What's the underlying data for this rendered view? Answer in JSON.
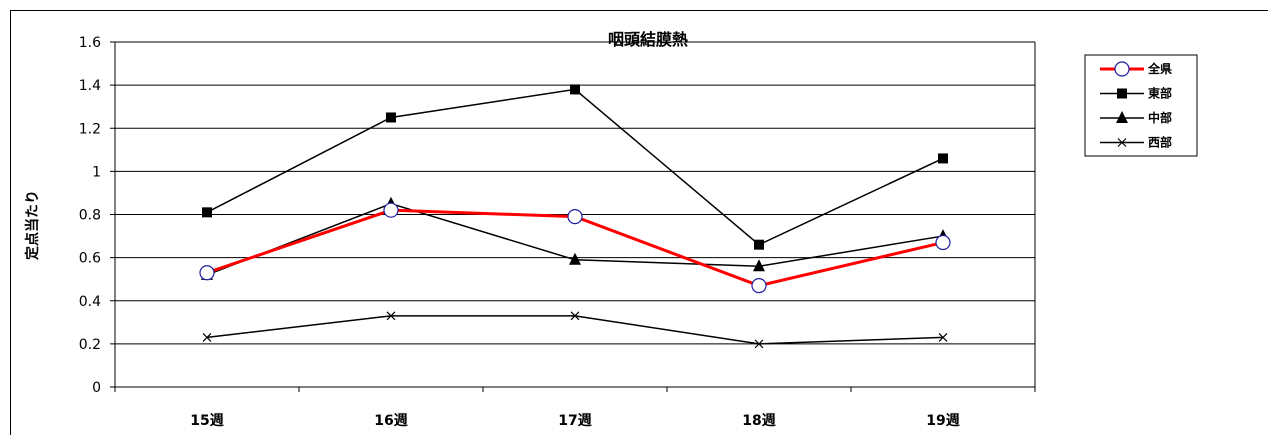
{
  "chart_data": {
    "type": "line",
    "title": "咽頭結膜熱",
    "xlabel": "",
    "ylabel": "定点当たり",
    "categories": [
      "15週",
      "16週",
      "17週",
      "18週",
      "19週"
    ],
    "ylim": [
      0,
      1.6
    ],
    "yticks": [
      "0",
      "0.2",
      "0.4",
      "0.6",
      "0.8",
      "1",
      "1.2",
      "1.4",
      "1.6"
    ],
    "grid": true,
    "legend_position": "right",
    "series": [
      {
        "name": "全県",
        "values": [
          0.53,
          0.82,
          0.79,
          0.47,
          0.67
        ],
        "color": "#ff0000",
        "marker": "circle"
      },
      {
        "name": "東部",
        "values": [
          0.81,
          1.25,
          1.38,
          0.66,
          1.06
        ],
        "color": "#000000",
        "marker": "square"
      },
      {
        "name": "中部",
        "values": [
          0.52,
          0.85,
          0.59,
          0.56,
          0.7
        ],
        "color": "#000000",
        "marker": "triangle"
      },
      {
        "name": "西部",
        "values": [
          0.23,
          0.33,
          0.33,
          0.2,
          0.23
        ],
        "color": "#000000",
        "marker": "x"
      }
    ]
  }
}
